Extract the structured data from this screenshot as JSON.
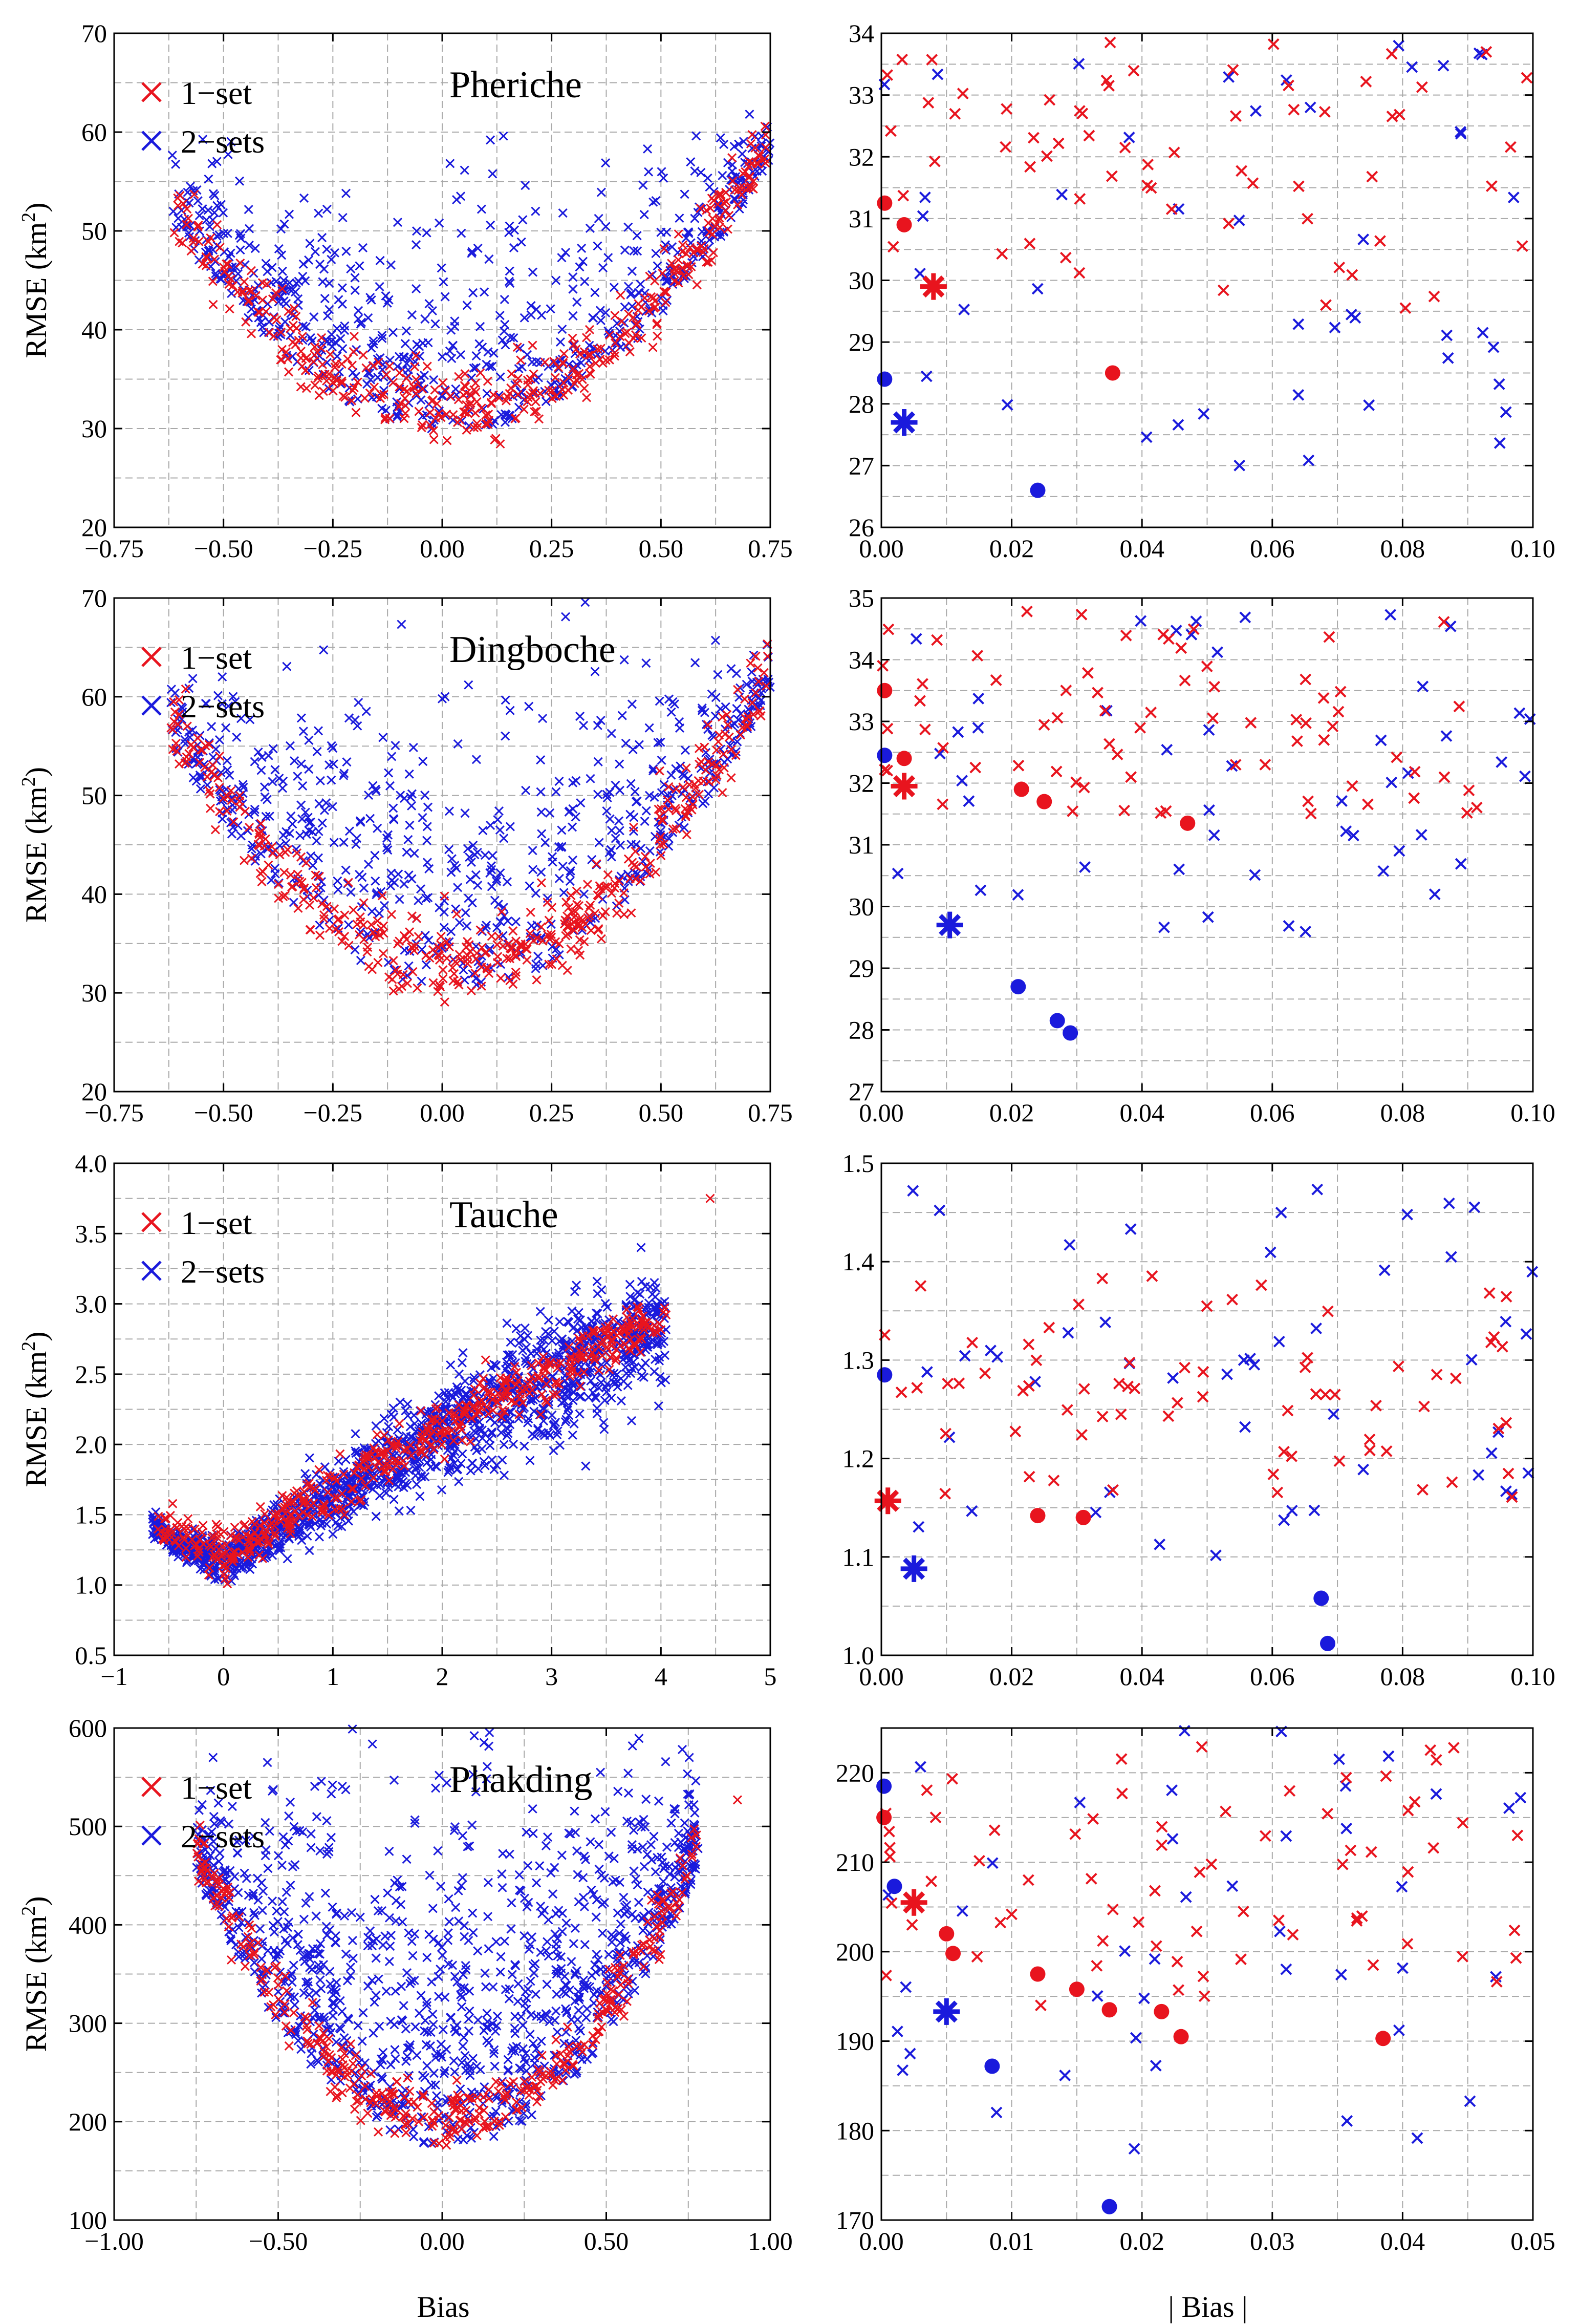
{
  "colors": {
    "one_set": "#e8141e",
    "two_sets": "#1a1adc"
  },
  "legend": {
    "one_set": "1−set",
    "two_sets": "2−sets"
  },
  "x_labels": {
    "left": "Bias",
    "right": "| Bias |"
  },
  "chart_data": [
    {
      "type": "scatter",
      "title": "Pheriche",
      "xlim": [
        -0.75,
        0.75
      ],
      "ylim": [
        20,
        70
      ],
      "xticks": [
        -0.75,
        -0.5,
        -0.25,
        0,
        0.25,
        0.5,
        0.75
      ],
      "xtick_labels": [
        "−0.75",
        "−0.50",
        "−0.25",
        "0.00",
        "0.25",
        "0.50",
        "0.75"
      ],
      "yticks": [
        20,
        30,
        40,
        50,
        60,
        70
      ],
      "ytick_labels": [
        "20",
        "30",
        "40",
        "50",
        "60",
        "70"
      ],
      "ylabel": "RMSE (km",
      "curve": {
        "vertex_x": 0.03,
        "min": 31,
        "left_x": -0.62,
        "left_y": 52,
        "right_x": 0.75,
        "right_y": 58.5,
        "blue_spread": 10,
        "red_spread": 5,
        "blue_points": 650,
        "red_points": 420
      },
      "outliers": [
        [
          0.11,
          59.2
        ],
        [
          0.14,
          59.6
        ],
        [
          0.19,
          54.6
        ],
        [
          -0.22,
          53.8
        ],
        [
          0.09,
          52.2
        ]
      ]
    },
    {
      "type": "scatter",
      "xlim": [
        0,
        0.1
      ],
      "ylim": [
        26,
        34
      ],
      "xticks": [
        0,
        0.02,
        0.04,
        0.06,
        0.08,
        0.1
      ],
      "xtick_labels": [
        "0.00",
        "0.02",
        "0.04",
        "0.06",
        "0.08",
        "0.10"
      ],
      "yticks": [
        26,
        27,
        28,
        29,
        30,
        31,
        32,
        33,
        34
      ],
      "ytick_labels": [
        "26",
        "27",
        "28",
        "29",
        "30",
        "31",
        "32",
        "33",
        "34"
      ],
      "random": {
        "red_count": 65,
        "blue_count": 45,
        "red_y": [
          29.5,
          34
        ],
        "blue_y": [
          27,
          34
        ]
      },
      "red_dots": [
        [
          0.0005,
          31.25
        ],
        [
          0.0035,
          30.9
        ],
        [
          0.0355,
          28.5
        ]
      ],
      "red_star": [
        0.008,
        29.9
      ],
      "blue_dots": [
        [
          0.0005,
          28.4
        ],
        [
          0.024,
          26.6
        ]
      ],
      "blue_star": [
        0.0035,
        27.7
      ]
    },
    {
      "type": "scatter",
      "title": "Dingboche",
      "xlim": [
        -0.75,
        0.75
      ],
      "ylim": [
        20,
        70
      ],
      "xticks": [
        -0.75,
        -0.5,
        -0.25,
        0,
        0.25,
        0.5,
        0.75
      ],
      "xtick_labels": [
        "−0.75",
        "−0.50",
        "−0.25",
        "0.00",
        "0.25",
        "0.50",
        "0.75"
      ],
      "yticks": [
        20,
        30,
        40,
        50,
        60,
        70
      ],
      "ytick_labels": [
        "20",
        "30",
        "40",
        "50",
        "60",
        "70"
      ],
      "ylabel": "RMSE (km",
      "curve": {
        "vertex_x": 0.03,
        "min": 32,
        "left_x": -0.62,
        "left_y": 57,
        "right_x": 0.75,
        "right_y": 62,
        "blue_spread": 13,
        "red_spread": 5,
        "blue_points": 650,
        "red_points": 420
      },
      "outliers": [
        [
          0.06,
          61.2
        ],
        [
          0.0,
          59.8
        ],
        [
          -0.25,
          54.8
        ]
      ]
    },
    {
      "type": "scatter",
      "xlim": [
        0,
        0.1
      ],
      "ylim": [
        27,
        35
      ],
      "xticks": [
        0,
        0.02,
        0.04,
        0.06,
        0.08,
        0.1
      ],
      "xtick_labels": [
        "0.00",
        "0.02",
        "0.04",
        "0.06",
        "0.08",
        "0.10"
      ],
      "yticks": [
        27,
        28,
        29,
        30,
        31,
        32,
        33,
        34,
        35
      ],
      "ytick_labels": [
        "27",
        "28",
        "29",
        "30",
        "31",
        "32",
        "33",
        "34",
        "35"
      ],
      "random": {
        "red_count": 70,
        "blue_count": 48,
        "red_y": [
          31.5,
          34.8
        ],
        "blue_y": [
          29.5,
          34.8
        ]
      },
      "red_dots": [
        [
          0.0005,
          33.5
        ],
        [
          0.0035,
          32.4
        ],
        [
          0.0215,
          31.9
        ],
        [
          0.025,
          31.7
        ],
        [
          0.047,
          31.35
        ]
      ],
      "red_star": [
        0.0035,
        31.95
      ],
      "blue_dots": [
        [
          0.0005,
          32.45
        ],
        [
          0.021,
          28.7
        ],
        [
          0.027,
          28.15
        ],
        [
          0.029,
          27.95
        ]
      ],
      "blue_star": [
        0.0105,
        29.7
      ]
    },
    {
      "type": "scatter",
      "title": "Tauche",
      "xlim": [
        -1,
        5
      ],
      "ylim": [
        0.5,
        4.0
      ],
      "xticks": [
        -1,
        0,
        1,
        2,
        3,
        4,
        5
      ],
      "xtick_labels": [
        "−1",
        "0",
        "1",
        "2",
        "3",
        "4",
        "5"
      ],
      "yticks": [
        0.5,
        1.0,
        1.5,
        2.0,
        2.5,
        3.0,
        3.5,
        4.0
      ],
      "ytick_labels": [
        "0.5",
        "1.0",
        "1.5",
        "2.0",
        "2.5",
        "3.0",
        "3.5",
        "4.0"
      ],
      "ylabel": "RMSE (km",
      "outliers": [
        [
          4.45,
          3.75
        ]
      ]
    },
    {
      "type": "scatter",
      "xlim": [
        0,
        0.1
      ],
      "ylim": [
        1.0,
        1.5
      ],
      "xticks": [
        0,
        0.02,
        0.04,
        0.06,
        0.08,
        0.1
      ],
      "xtick_labels": [
        "0.00",
        "0.02",
        "0.04",
        "0.06",
        "0.08",
        "0.10"
      ],
      "yticks": [
        1.0,
        1.1,
        1.2,
        1.3,
        1.4,
        1.5
      ],
      "ytick_labels": [
        "1.0",
        "1.1",
        "1.2",
        "1.3",
        "1.4",
        "1.5"
      ],
      "random": {
        "red_count": 70,
        "blue_count": 50,
        "red_y": [
          1.16,
          1.39
        ],
        "blue_y": [
          1.1,
          1.48
        ]
      },
      "red_dots": [
        [
          0.024,
          1.142
        ],
        [
          0.031,
          1.14
        ]
      ],
      "red_star": [
        0.001,
        1.157
      ],
      "blue_dots": [
        [
          0.0005,
          1.285
        ],
        [
          0.0675,
          1.058
        ],
        [
          0.0685,
          1.012
        ]
      ],
      "blue_star": [
        0.005,
        1.088
      ]
    },
    {
      "type": "scatter",
      "title": "Phakding",
      "xlim": [
        -1,
        1
      ],
      "ylim": [
        100,
        600
      ],
      "xticks": [
        -1,
        -0.5,
        0,
        0.5,
        1
      ],
      "xtick_labels": [
        "−1.00",
        "−0.50",
        "0.00",
        "0.50",
        "1.00"
      ],
      "yticks": [
        100,
        200,
        300,
        400,
        500,
        600
      ],
      "ytick_labels": [
        "100",
        "200",
        "300",
        "400",
        "500",
        "600"
      ],
      "ylabel": "RMSE (km",
      "curve": {
        "vertex_x": 0.02,
        "min": 195,
        "left_x": -0.75,
        "left_y": 470,
        "right_x": 0.78,
        "right_y": 475,
        "blue_spread": 160,
        "red_spread": 40,
        "blue_points": 1100,
        "red_points": 380
      },
      "outliers": [
        [
          0.9,
          527
        ]
      ]
    },
    {
      "type": "scatter",
      "xlim": [
        0,
        0.05
      ],
      "ylim": [
        170,
        225
      ],
      "xticks": [
        0,
        0.01,
        0.02,
        0.03,
        0.04,
        0.05
      ],
      "xtick_labels": [
        "0.00",
        "0.01",
        "0.02",
        "0.03",
        "0.04",
        "0.05"
      ],
      "yticks": [
        170,
        180,
        190,
        200,
        210,
        220
      ],
      "ytick_labels": [
        "170",
        "180",
        "190",
        "200",
        "210",
        "220"
      ],
      "random": {
        "red_count": 70,
        "blue_count": 42,
        "red_y": [
          193,
          224
        ],
        "blue_y": [
          177,
          225
        ]
      },
      "red_dots": [
        [
          0.0002,
          215
        ],
        [
          0.005,
          202
        ],
        [
          0.0055,
          199.8
        ],
        [
          0.012,
          197.5
        ],
        [
          0.015,
          195.8
        ],
        [
          0.0175,
          193.5
        ],
        [
          0.0215,
          193.3
        ],
        [
          0.023,
          190.5
        ],
        [
          0.0385,
          190.3
        ]
      ],
      "red_star": [
        0.0025,
        205.5
      ],
      "blue_dots": [
        [
          0.0002,
          218.5
        ],
        [
          0.001,
          207.3
        ],
        [
          0.0085,
          187.2
        ],
        [
          0.0175,
          171.5
        ]
      ],
      "blue_star": [
        0.005,
        193.3
      ]
    }
  ]
}
